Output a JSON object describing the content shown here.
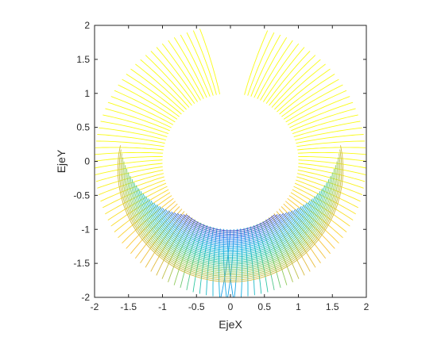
{
  "chart_data": {
    "type": "contour",
    "xlabel": "EjeX",
    "ylabel": "EjeY",
    "xlim": [
      -2,
      2
    ],
    "ylim": [
      -2,
      2
    ],
    "x_ticks": [
      -2,
      -1.5,
      -1,
      -0.5,
      0,
      0.5,
      1,
      1.5,
      2
    ],
    "y_ticks": [
      -2,
      -1.5,
      -1,
      -0.5,
      0,
      0.5,
      1,
      1.5,
      2
    ],
    "x_tick_labels": [
      "-2",
      "-1.5",
      "-1",
      "-0.5",
      "0",
      "0.5",
      "1",
      "1.5",
      "2"
    ],
    "y_tick_labels": [
      "-2",
      "-1.5",
      "-1",
      "-0.5",
      "0",
      "0.5",
      "1",
      "1.5",
      "2"
    ],
    "domain": {
      "inner_radius": 1,
      "outer_radius": 2,
      "center": [
        0,
        0
      ]
    },
    "colormap": [
      "#3e26a8",
      "#2f6ff0",
      "#13b0e3",
      "#2ec7a4",
      "#8fcb5b",
      "#dfb93d",
      "#fbc63a",
      "#f9fb15"
    ],
    "contour_levels": 60,
    "grid": false,
    "box": true
  }
}
